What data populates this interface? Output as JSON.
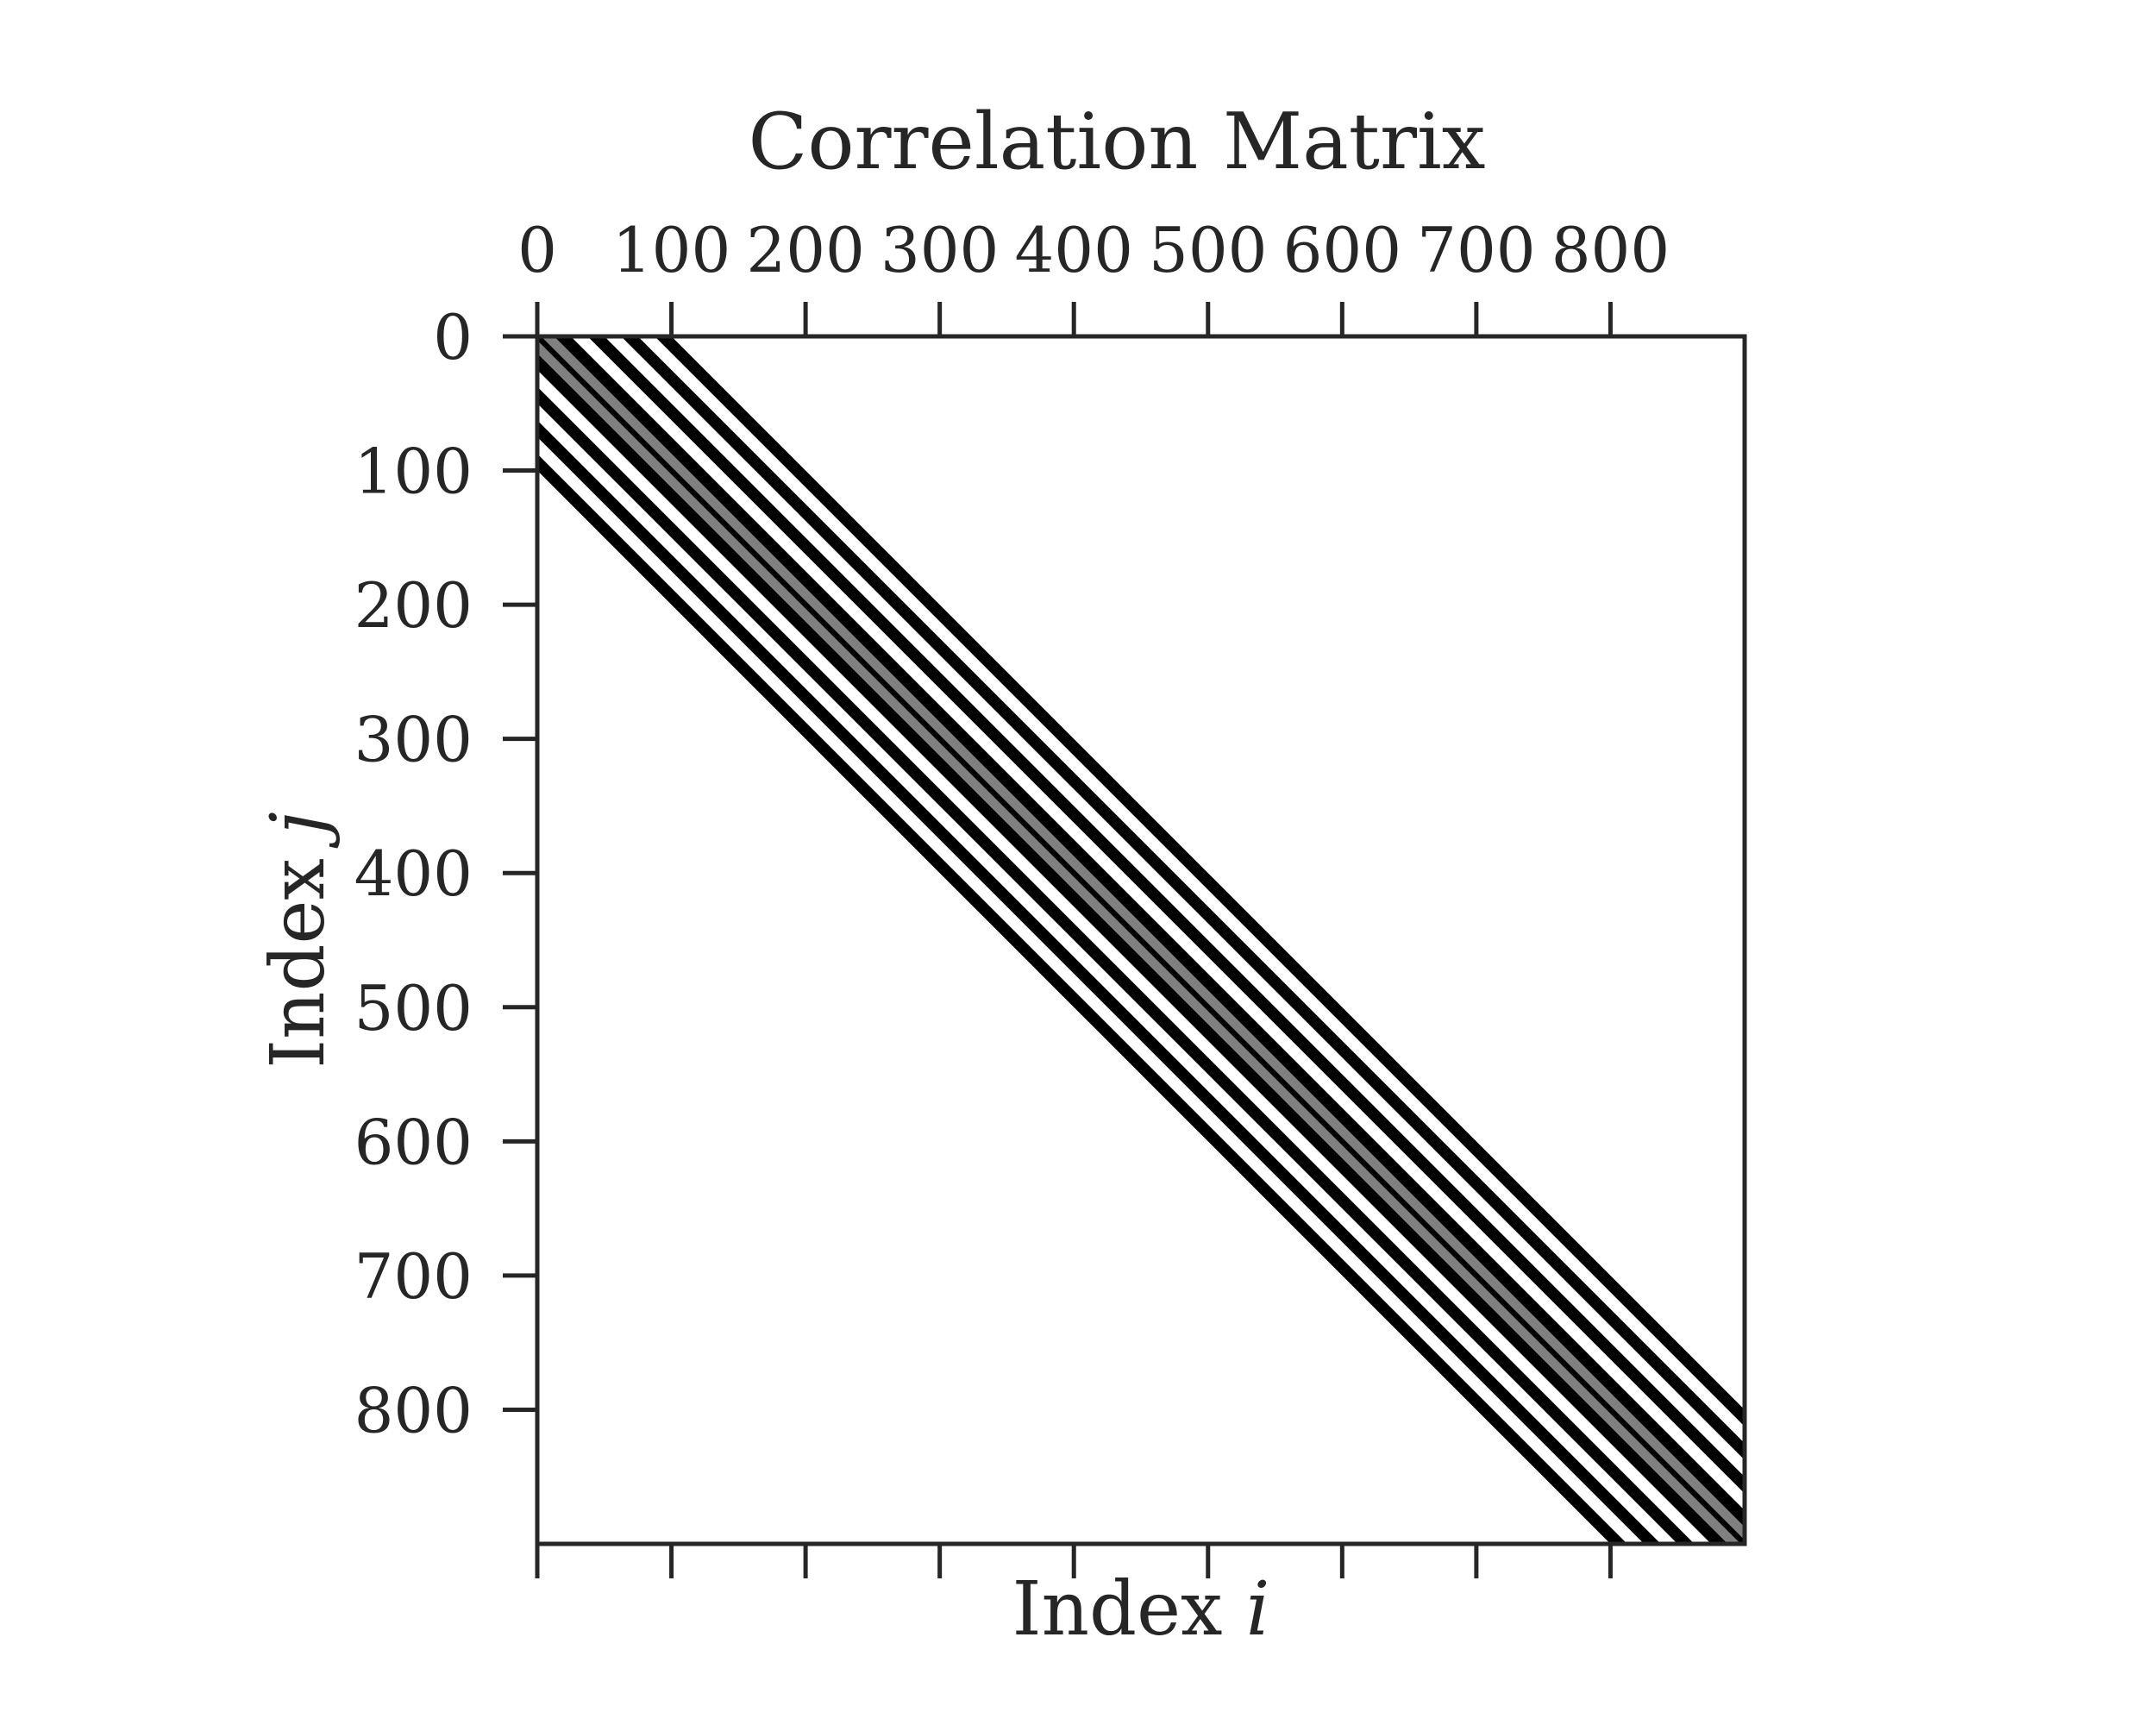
{
  "chart_data": {
    "type": "heatmap",
    "title": "Correlation Matrix",
    "xlabel": {
      "prefix": "Index ",
      "variable": "i"
    },
    "ylabel": {
      "prefix": "Index ",
      "variable": "j"
    },
    "matrix_size": 900,
    "xlim": [
      0,
      900
    ],
    "ylim": [
      900,
      0
    ],
    "x_ticks": [
      0,
      100,
      200,
      300,
      400,
      500,
      600,
      700,
      800
    ],
    "y_ticks": [
      0,
      100,
      200,
      300,
      400,
      500,
      600,
      700,
      800
    ],
    "x_tick_labels_position": "top",
    "grid": false,
    "colormap": "gray_r",
    "colors": {
      "low": "#ffffff",
      "high": "#000000",
      "axis": "#262626"
    },
    "bands": [
      {
        "offset": -94,
        "value": 1.0
      },
      {
        "offset": -81,
        "value": 0.0
      },
      {
        "offset": -69,
        "value": 1.0
      },
      {
        "offset": -56,
        "value": 0.0
      },
      {
        "offset": -44,
        "value": 1.0
      },
      {
        "offset": -31,
        "value": 0.0
      },
      {
        "offset": -19,
        "value": 1.0
      },
      {
        "offset": -6,
        "value": 0.5
      },
      {
        "offset": 0,
        "value": 1.0
      },
      {
        "offset": 6,
        "value": 0.5
      },
      {
        "offset": 19,
        "value": 1.0
      },
      {
        "offset": 31,
        "value": 0.0
      },
      {
        "offset": 44,
        "value": 1.0
      },
      {
        "offset": 56,
        "value": 0.0
      },
      {
        "offset": 69,
        "value": 1.0
      },
      {
        "offset": 81,
        "value": 0.0
      },
      {
        "offset": 94,
        "value": 1.0
      }
    ],
    "band_limit": 100
  }
}
